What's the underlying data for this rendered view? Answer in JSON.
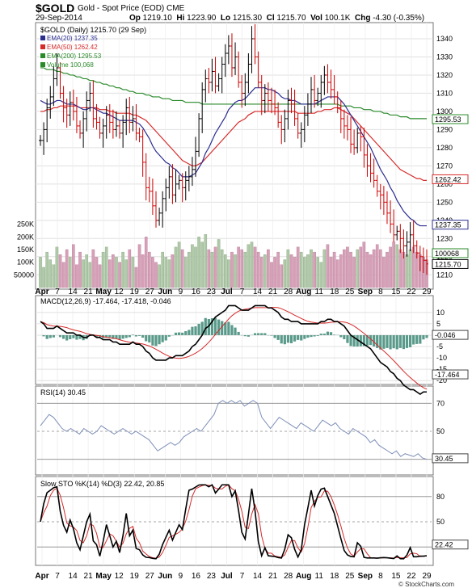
{
  "header": {
    "symbol": "$GOLD",
    "title": "Gold - Spot Price (EOD)",
    "exchange": "CME",
    "date": "29-Sep-2014",
    "open_label": "Op",
    "open": "1219.10",
    "high_label": "Hi",
    "high": "1223.90",
    "low_label": "Lo",
    "low": "1215.30",
    "close_label": "Cl",
    "close": "1215.70",
    "vol_label": "Vol",
    "vol": "100.1K",
    "chg_label": "Chg",
    "chg": "-4.30 (-0.35%)",
    "copyright": "© StockCharts.com"
  },
  "colors": {
    "price_bar": "#000000",
    "ema20": "#2b2d8f",
    "ema50": "#d62a2a",
    "ema200": "#2a8a2a",
    "vol_up": "#b0c9a8",
    "vol_down": "#d8a0b8",
    "macd_hist": "#5a9a8a",
    "grid": "#e0e0e0",
    "border": "#777777"
  },
  "chart_data": [
    {
      "type": "ohlc",
      "title": "$GOLD (Daily) 1215.70 (29 Sep)",
      "legend": [
        {
          "name": "EMA(20) 1237.35",
          "color": "#2b2d8f"
        },
        {
          "name": "EMA(50) 1262.42",
          "color": "#d62a2a"
        },
        {
          "name": "EMA(200) 1295.53",
          "color": "#2a8a2a"
        },
        {
          "name": "Volume 100,068",
          "color": "#2a8a2a"
        }
      ],
      "x_ticks": [
        "Apr",
        "7",
        "14",
        "21",
        "May",
        "12",
        "19",
        "27",
        "Jun",
        "9",
        "16",
        "23",
        "Jul",
        "7",
        "14",
        "21",
        "28",
        "Aug",
        "11",
        "18",
        "25",
        "Sep",
        "8",
        "15",
        "22",
        "29"
      ],
      "y_ticks": [
        1210,
        1220,
        1230,
        1240,
        1250,
        1260,
        1270,
        1280,
        1290,
        1300,
        1310,
        1320,
        1330,
        1340
      ],
      "ylim": [
        1203,
        1348
      ],
      "volume_ticks": [
        "250K",
        "200K",
        "150K",
        "100K",
        "50000"
      ],
      "volume_lim": [
        0,
        300000
      ],
      "value_labels": [
        "1295.53",
        "1262.42",
        "1237.35",
        "100068",
        "1215.70"
      ],
      "close_series": [
        1284,
        1290,
        1302,
        1308,
        1318,
        1324,
        1310,
        1302,
        1298,
        1305,
        1300,
        1292,
        1288,
        1296,
        1306,
        1310,
        1296,
        1294,
        1288,
        1292,
        1298,
        1294,
        1290,
        1292,
        1288,
        1294,
        1302,
        1294,
        1296,
        1288,
        1286,
        1272,
        1258,
        1256,
        1248,
        1240,
        1244,
        1252,
        1258,
        1264,
        1254,
        1260,
        1262,
        1258,
        1262,
        1264,
        1268,
        1278,
        1296,
        1312,
        1318,
        1316,
        1322,
        1314,
        1318,
        1326,
        1332,
        1336,
        1324,
        1330,
        1316,
        1310,
        1316,
        1326,
        1340,
        1330,
        1316,
        1306,
        1310,
        1306,
        1304,
        1302,
        1294,
        1290,
        1296,
        1306,
        1304,
        1296,
        1288,
        1290,
        1298,
        1304,
        1312,
        1306,
        1310,
        1316,
        1320,
        1316,
        1312,
        1308,
        1302,
        1296,
        1292,
        1290,
        1282,
        1280,
        1288,
        1286,
        1276,
        1270,
        1266,
        1262,
        1256,
        1254,
        1250,
        1244,
        1238,
        1232,
        1234,
        1230,
        1226,
        1228,
        1232,
        1226,
        1222,
        1220,
        1218,
        1216
      ],
      "ema20_series": [
        1306,
        1305,
        1304,
        1304,
        1305,
        1306,
        1306,
        1305,
        1304,
        1304,
        1304,
        1303,
        1302,
        1301,
        1301,
        1302,
        1302,
        1301,
        1300,
        1299,
        1299,
        1298,
        1297,
        1296,
        1295,
        1295,
        1295,
        1295,
        1295,
        1294,
        1293,
        1291,
        1288,
        1285,
        1281,
        1278,
        1276,
        1274,
        1272,
        1271,
        1269,
        1268,
        1266,
        1264,
        1264,
        1264,
        1265,
        1266,
        1269,
        1272,
        1277,
        1280,
        1284,
        1288,
        1291,
        1294,
        1297,
        1301,
        1303,
        1305,
        1306,
        1306,
        1307,
        1309,
        1311,
        1313,
        1313,
        1313,
        1313,
        1312,
        1312,
        1311,
        1310,
        1308,
        1307,
        1307,
        1306,
        1306,
        1305,
        1304,
        1304,
        1304,
        1304,
        1304,
        1305,
        1306,
        1307,
        1308,
        1308,
        1308,
        1308,
        1306,
        1304,
        1301,
        1298,
        1295,
        1292,
        1289,
        1286,
        1283,
        1280,
        1276,
        1272,
        1268,
        1265,
        1262,
        1258,
        1255,
        1251,
        1248,
        1245,
        1243,
        1241,
        1240,
        1238,
        1237,
        1237,
        1237
      ],
      "ema50_series": [
        1300,
        1300,
        1301,
        1301,
        1302,
        1302,
        1303,
        1303,
        1303,
        1303,
        1303,
        1303,
        1302,
        1302,
        1302,
        1302,
        1302,
        1302,
        1301,
        1301,
        1301,
        1300,
        1300,
        1299,
        1299,
        1299,
        1299,
        1299,
        1298,
        1298,
        1297,
        1296,
        1295,
        1293,
        1291,
        1289,
        1287,
        1285,
        1283,
        1281,
        1279,
        1277,
        1275,
        1273,
        1272,
        1271,
        1270,
        1270,
        1271,
        1272,
        1274,
        1276,
        1278,
        1280,
        1282,
        1284,
        1286,
        1288,
        1290,
        1292,
        1294,
        1295,
        1296,
        1298,
        1299,
        1300,
        1300,
        1300,
        1300,
        1300,
        1300,
        1300,
        1300,
        1300,
        1300,
        1300,
        1300,
        1300,
        1299,
        1299,
        1299,
        1299,
        1299,
        1299,
        1300,
        1300,
        1301,
        1301,
        1301,
        1302,
        1302,
        1301,
        1300,
        1299,
        1298,
        1296,
        1294,
        1292,
        1290,
        1288,
        1286,
        1284,
        1282,
        1280,
        1278,
        1276,
        1274,
        1272,
        1270,
        1268,
        1267,
        1266,
        1265,
        1264,
        1263,
        1263,
        1262,
        1262
      ],
      "ema200_series": [
        1324,
        1324,
        1323,
        1323,
        1323,
        1322,
        1322,
        1321,
        1321,
        1320,
        1320,
        1319,
        1319,
        1318,
        1318,
        1317,
        1317,
        1316,
        1316,
        1315,
        1315,
        1314,
        1314,
        1313,
        1313,
        1312,
        1312,
        1311,
        1311,
        1310,
        1310,
        1310,
        1309,
        1309,
        1308,
        1308,
        1308,
        1307,
        1307,
        1307,
        1306,
        1306,
        1306,
        1306,
        1305,
        1305,
        1305,
        1305,
        1305,
        1304,
        1304,
        1304,
        1304,
        1304,
        1304,
        1304,
        1304,
        1304,
        1304,
        1304,
        1304,
        1304,
        1304,
        1304,
        1304,
        1304,
        1304,
        1304,
        1304,
        1304,
        1304,
        1304,
        1304,
        1304,
        1304,
        1304,
        1304,
        1304,
        1304,
        1304,
        1304,
        1304,
        1304,
        1304,
        1304,
        1304,
        1304,
        1304,
        1304,
        1304,
        1304,
        1303,
        1303,
        1303,
        1303,
        1302,
        1302,
        1302,
        1301,
        1301,
        1301,
        1300,
        1300,
        1300,
        1299,
        1299,
        1298,
        1298,
        1298,
        1297,
        1297,
        1297,
        1296,
        1296,
        1296,
        1296,
        1296,
        1296
      ]
    },
    {
      "type": "macd",
      "title": "MACD(12,26,9) -17.464, -17.418, -0.046",
      "y_ticks": [
        10,
        5,
        0,
        -5,
        -10,
        -15,
        -20
      ],
      "ylim": [
        -21,
        16
      ],
      "value_labels": [
        "-0.046",
        "-17.464"
      ]
    },
    {
      "type": "rsi",
      "title": "RSI(14) 30.45",
      "y_ticks": [
        70,
        50,
        30
      ],
      "ylim": [
        20,
        80
      ],
      "value_labels": [
        "30.45"
      ],
      "series": [
        54,
        58,
        62,
        60,
        56,
        52,
        50,
        52,
        50,
        48,
        52,
        50,
        48,
        50,
        54,
        52,
        50,
        48,
        50,
        52,
        50,
        48,
        50,
        48,
        46,
        44,
        40,
        36,
        38,
        40,
        42,
        40,
        42,
        46,
        48,
        50,
        52,
        50,
        54,
        58,
        62,
        70,
        72,
        70,
        72,
        70,
        72,
        68,
        70,
        72,
        70,
        60,
        56,
        52,
        56,
        60,
        58,
        56,
        54,
        52,
        56,
        54,
        52,
        50,
        54,
        58,
        56,
        54,
        56,
        52,
        50,
        48,
        52,
        50,
        48,
        46,
        42,
        44,
        40,
        38,
        36,
        34,
        36,
        32,
        34,
        33,
        32,
        34,
        31,
        30
      ]
    },
    {
      "type": "stochastic",
      "title": "Slow STO %K(14) %D(3) 22.42, 20.85",
      "y_ticks": [
        80,
        50,
        20
      ],
      "ylim": [
        0,
        100
      ],
      "value_labels": [
        "22.42"
      ]
    }
  ]
}
